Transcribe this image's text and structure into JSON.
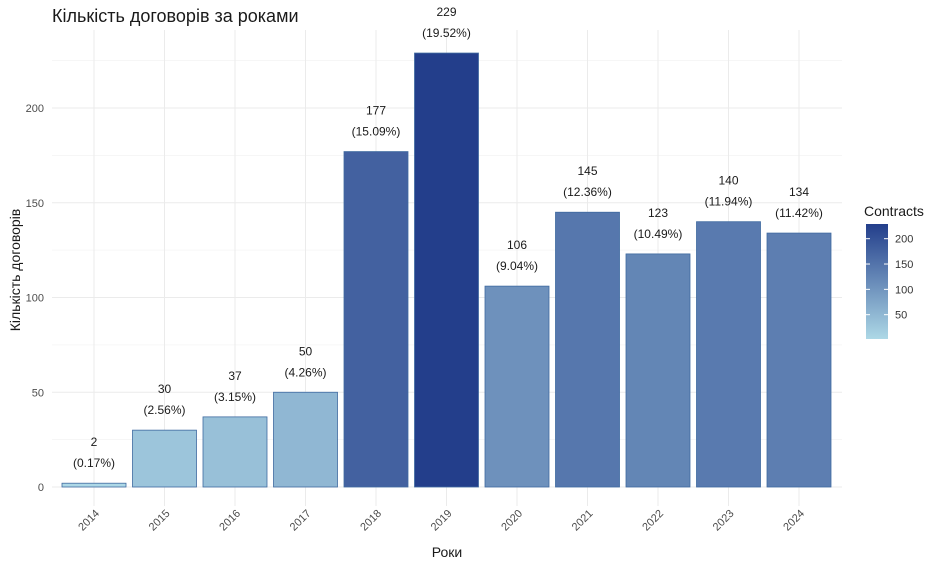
{
  "chart_data": {
    "type": "bar",
    "title": "Кількість договорів за роками",
    "xlabel": "Роки",
    "ylabel": "Кількість договорів",
    "categories": [
      "2014",
      "2015",
      "2016",
      "2017",
      "2018",
      "2019",
      "2020",
      "2021",
      "2022",
      "2023",
      "2024"
    ],
    "values": [
      2,
      30,
      37,
      50,
      177,
      229,
      106,
      145,
      123,
      140,
      134
    ],
    "labels": [
      "2\n(0.17%)",
      "30\n(2.56%)",
      "37\n(3.15%)",
      "50\n(4.26%)",
      "177\n(15.09%)",
      "229\n(19.52%)",
      "106\n(9.04%)",
      "145\n(12.36%)",
      "123\n(10.49%)",
      "140\n(11.94%)",
      "134\n(11.42%)"
    ],
    "ylim": [
      0,
      240
    ],
    "yticks": [
      0,
      50,
      100,
      150,
      200
    ],
    "grid": true,
    "legend": {
      "title": "Contracts",
      "ticks": [
        50,
        100,
        150,
        200
      ],
      "range": [
        2,
        229
      ],
      "color_low": "#add8e6",
      "color_high": "#233e8b",
      "placement": "right"
    }
  }
}
